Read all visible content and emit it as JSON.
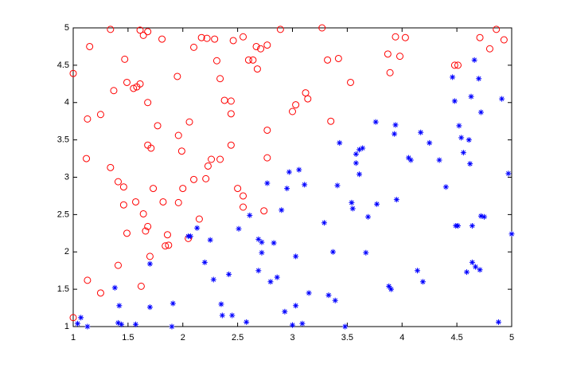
{
  "chart_data": {
    "type": "scatter",
    "xlim": [
      1,
      5
    ],
    "ylim": [
      1,
      5
    ],
    "xticks": [
      1,
      1.5,
      2,
      2.5,
      3,
      3.5,
      4,
      4.5,
      5
    ],
    "yticks": [
      1,
      1.5,
      2,
      2.5,
      3,
      3.5,
      4,
      4.5,
      5
    ],
    "grid": false,
    "series": [
      {
        "color": "#ff0000",
        "marker": "circle",
        "x": [
          1.0,
          1.0,
          1.15,
          1.13,
          1.12,
          1.13,
          1.25,
          1.25,
          1.34,
          1.34,
          1.37,
          1.41,
          1.46,
          1.41,
          1.46,
          1.47,
          1.49,
          1.49,
          1.58,
          1.57,
          1.55,
          1.61,
          1.61,
          1.64,
          1.68,
          1.64,
          1.68,
          1.62,
          1.66,
          1.68,
          1.68,
          1.71,
          1.7,
          1.73,
          1.77,
          1.81,
          1.82,
          1.84,
          1.86,
          1.87,
          1.95,
          1.96,
          1.96,
          1.99,
          2.0,
          2.05,
          2.06,
          2.1,
          2.1,
          2.15,
          2.17,
          2.21,
          2.22,
          2.23,
          2.26,
          2.29,
          2.31,
          2.34,
          2.34,
          2.38,
          2.44,
          2.44,
          2.44,
          2.46,
          2.55,
          2.5,
          2.55,
          2.55,
          2.6,
          2.64,
          2.67,
          2.68,
          2.71,
          2.77,
          2.77,
          2.77,
          2.74,
          2.89,
          3.0,
          3.03,
          3.12,
          3.14,
          3.27,
          3.32,
          3.35,
          3.42,
          3.53,
          3.87,
          3.89,
          3.94,
          3.98,
          4.03,
          4.48,
          4.51,
          4.71,
          4.8,
          4.86,
          4.93
        ],
        "values": [
          4.39,
          1.12,
          4.75,
          3.78,
          3.25,
          1.62,
          3.84,
          1.45,
          4.98,
          3.13,
          4.16,
          2.94,
          2.87,
          1.82,
          2.63,
          4.58,
          4.27,
          2.25,
          4.21,
          2.67,
          4.19,
          4.25,
          4.97,
          4.9,
          4.95,
          2.51,
          2.34,
          1.54,
          2.28,
          4.0,
          3.43,
          3.39,
          1.94,
          2.85,
          3.69,
          4.85,
          2.67,
          2.08,
          2.23,
          2.09,
          4.35,
          2.66,
          3.56,
          3.35,
          2.85,
          2.18,
          3.74,
          4.74,
          2.97,
          2.44,
          4.87,
          2.98,
          4.86,
          3.15,
          3.24,
          4.85,
          4.56,
          4.32,
          3.24,
          4.03,
          4.02,
          3.85,
          3.43,
          4.83,
          4.88,
          2.85,
          2.75,
          2.6,
          4.57,
          4.57,
          4.75,
          4.45,
          4.72,
          4.77,
          3.63,
          3.26,
          2.55,
          4.98,
          3.88,
          3.97,
          4.13,
          4.05,
          5.0,
          4.57,
          3.75,
          4.59,
          4.27,
          4.65,
          4.4,
          4.88,
          4.62,
          4.87,
          4.5,
          4.5,
          4.87,
          4.72,
          4.98,
          4.84
        ]
      },
      {
        "color": "#0000ff",
        "marker": "asterisk",
        "x": [
          1.07,
          1.04,
          1.13,
          1.38,
          1.42,
          1.41,
          1.44,
          1.57,
          1.7,
          1.7,
          1.91,
          1.9,
          2.05,
          2.07,
          2.13,
          2.2,
          2.25,
          2.28,
          2.35,
          2.36,
          2.42,
          2.45,
          2.51,
          2.58,
          2.61,
          2.69,
          2.69,
          2.72,
          2.72,
          2.77,
          2.8,
          2.83,
          2.86,
          2.9,
          2.93,
          2.95,
          2.97,
          3.0,
          3.03,
          3.03,
          3.06,
          3.09,
          3.11,
          3.15,
          3.29,
          3.33,
          3.37,
          3.39,
          3.41,
          3.43,
          3.48,
          3.54,
          3.55,
          3.58,
          3.58,
          3.61,
          3.61,
          3.64,
          3.67,
          3.69,
          3.76,
          3.77,
          3.88,
          3.9,
          3.93,
          3.94,
          3.95,
          4.06,
          4.08,
          4.14,
          4.17,
          4.19,
          4.25,
          4.34,
          4.4,
          4.46,
          4.48,
          4.49,
          4.52,
          4.51,
          4.54,
          4.56,
          4.59,
          4.61,
          4.62,
          4.63,
          4.64,
          4.66,
          4.64,
          4.67,
          4.7,
          4.71,
          4.72,
          4.72,
          4.75,
          4.88,
          4.91,
          4.97,
          5.0
        ],
        "values": [
          1.12,
          1.04,
          1.0,
          1.52,
          1.28,
          1.05,
          1.03,
          1.03,
          1.84,
          1.26,
          1.31,
          1.0,
          2.21,
          2.21,
          2.32,
          1.86,
          2.16,
          1.63,
          1.3,
          1.15,
          1.7,
          1.15,
          2.31,
          1.06,
          2.49,
          2.17,
          1.75,
          1.99,
          2.13,
          2.92,
          1.6,
          2.12,
          1.66,
          2.56,
          1.2,
          2.85,
          3.07,
          1.02,
          1.28,
          1.94,
          3.1,
          1.04,
          2.9,
          1.45,
          2.39,
          1.42,
          2.0,
          1.35,
          2.89,
          3.46,
          1.0,
          2.66,
          2.58,
          3.19,
          3.31,
          3.04,
          3.37,
          3.39,
          1.99,
          2.47,
          3.74,
          2.64,
          1.54,
          1.5,
          3.58,
          3.7,
          2.7,
          3.26,
          3.23,
          1.75,
          3.6,
          1.6,
          3.46,
          3.23,
          2.87,
          4.34,
          4.02,
          2.35,
          3.69,
          2.35,
          3.53,
          3.33,
          1.73,
          3.5,
          3.18,
          4.08,
          2.35,
          4.57,
          1.86,
          1.8,
          4.32,
          1.76,
          3.87,
          2.48,
          2.47,
          1.06,
          4.05,
          3.05,
          2.24
        ]
      }
    ]
  }
}
